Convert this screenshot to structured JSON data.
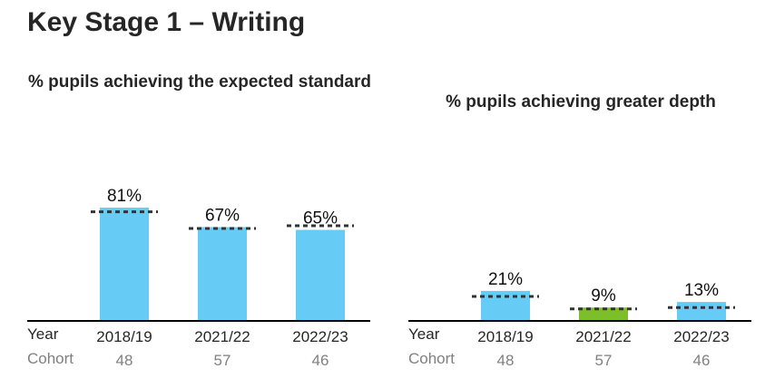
{
  "page_title": "Key Stage 1 – Writing",
  "row_labels": {
    "year": "Year",
    "cohort": "Cohort"
  },
  "chart_data": [
    {
      "type": "bar",
      "title": "% pupils achieving the expected standard",
      "categories": [
        "2018/19",
        "2021/22",
        "2022/23"
      ],
      "values": [
        81,
        67,
        65
      ],
      "value_labels": [
        "81%",
        "67%",
        "65%"
      ],
      "cohort": [
        "48",
        "57",
        "46"
      ],
      "benchmark": [
        78,
        66,
        68
      ],
      "bar_colors": [
        "#66ccf5",
        "#66ccf5",
        "#66ccf5"
      ],
      "benchmark_style": "dotted",
      "ylim": [
        0,
        100
      ],
      "xlabel": "",
      "ylabel": "",
      "grid": false
    },
    {
      "type": "bar",
      "title": "% pupils achieving greater depth",
      "categories": [
        "2018/19",
        "2021/22",
        "2022/23"
      ],
      "values": [
        21,
        9,
        13
      ],
      "value_labels": [
        "21%",
        "9%",
        "13%"
      ],
      "cohort": [
        "48",
        "57",
        "46"
      ],
      "benchmark": [
        17,
        8,
        9
      ],
      "bar_colors": [
        "#66ccf5",
        "#7cbf2a",
        "#66ccf5"
      ],
      "benchmark_style": "dotted",
      "ylim": [
        0,
        100
      ],
      "xlabel": "",
      "ylabel": "",
      "grid": false
    }
  ],
  "colors": {
    "baseline": "#000000",
    "benchmark": "#333333",
    "cohort_text": "#808080"
  }
}
